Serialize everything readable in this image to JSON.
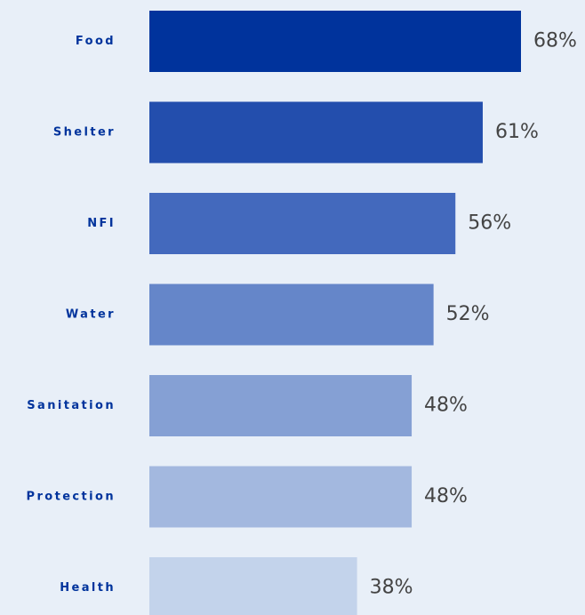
{
  "chart_data": {
    "type": "bar",
    "orientation": "horizontal",
    "categories": [
      "Food",
      "Shelter",
      "NFI",
      "Water",
      "Sanitation",
      "Protection",
      "Health"
    ],
    "values": [
      68,
      61,
      56,
      52,
      48,
      48,
      38
    ],
    "value_labels": [
      "68%",
      "61%",
      "56%",
      "52%",
      "48%",
      "48%",
      "38%"
    ],
    "unit": "%",
    "xlim": [
      0,
      68
    ],
    "grid": false,
    "legend": "none",
    "title": "",
    "xlabel": "",
    "ylabel": "",
    "colors": {
      "background": "#e8eff8",
      "label_text": "#00339c",
      "value_text": "#444444",
      "bars": [
        "#00339c",
        "#234ead",
        "#4369bd",
        "#6586c9",
        "#85a0d4",
        "#a3b8df",
        "#c3d3eb"
      ]
    }
  }
}
